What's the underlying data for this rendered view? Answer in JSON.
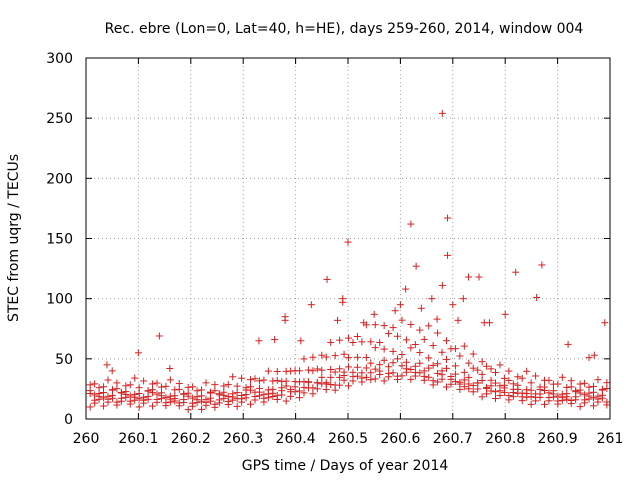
{
  "chart_data": {
    "type": "scatter",
    "title": "Rec. ebre (Lon=0, Lat=40, h=HE), days 259-260, 2014, window 004",
    "xlabel": "GPS time / Days of year 2014",
    "ylabel": "STEC from uqrg / TECUs",
    "xlim": [
      260,
      261
    ],
    "ylim": [
      0,
      300
    ],
    "xticks": [
      "260",
      "260.1",
      "260.2",
      "260.3",
      "260.4",
      "260.5",
      "260.6",
      "260.7",
      "260.8",
      "260.9",
      "261"
    ],
    "yticks": [
      "0",
      "50",
      "100",
      "150",
      "200",
      "250",
      "300"
    ],
    "grid": true,
    "marker": "+",
    "color": "#d62020",
    "series": [
      {
        "name": "STEC",
        "points": [
          [
            260.04,
            45
          ],
          [
            260.05,
            40
          ],
          [
            260.1,
            55
          ],
          [
            260.14,
            69
          ],
          [
            260.16,
            42
          ],
          [
            260.33,
            65
          ],
          [
            260.36,
            66
          ],
          [
            260.38,
            82
          ],
          [
            260.38,
            85
          ],
          [
            260.41,
            65
          ],
          [
            260.43,
            95
          ],
          [
            260.46,
            116
          ],
          [
            260.48,
            82
          ],
          [
            260.49,
            97
          ],
          [
            260.49,
            100
          ],
          [
            260.5,
            147
          ],
          [
            260.53,
            80
          ],
          [
            260.55,
            87
          ],
          [
            260.59,
            90
          ],
          [
            260.6,
            95
          ],
          [
            260.61,
            108
          ],
          [
            260.62,
            162
          ],
          [
            260.63,
            127
          ],
          [
            260.64,
            92
          ],
          [
            260.66,
            100
          ],
          [
            260.67,
            83
          ],
          [
            260.68,
            254
          ],
          [
            260.68,
            111
          ],
          [
            260.69,
            167
          ],
          [
            260.69,
            136
          ],
          [
            260.7,
            95
          ],
          [
            260.71,
            82
          ],
          [
            260.72,
            100
          ],
          [
            260.73,
            118
          ],
          [
            260.75,
            118
          ],
          [
            260.76,
            80
          ],
          [
            260.77,
            80
          ],
          [
            260.8,
            87
          ],
          [
            260.82,
            122
          ],
          [
            260.86,
            101
          ],
          [
            260.87,
            128
          ],
          [
            260.99,
            80
          ],
          [
            260.96,
            51
          ],
          [
            260.97,
            53
          ],
          [
            260.92,
            62
          ]
        ]
      }
    ]
  }
}
